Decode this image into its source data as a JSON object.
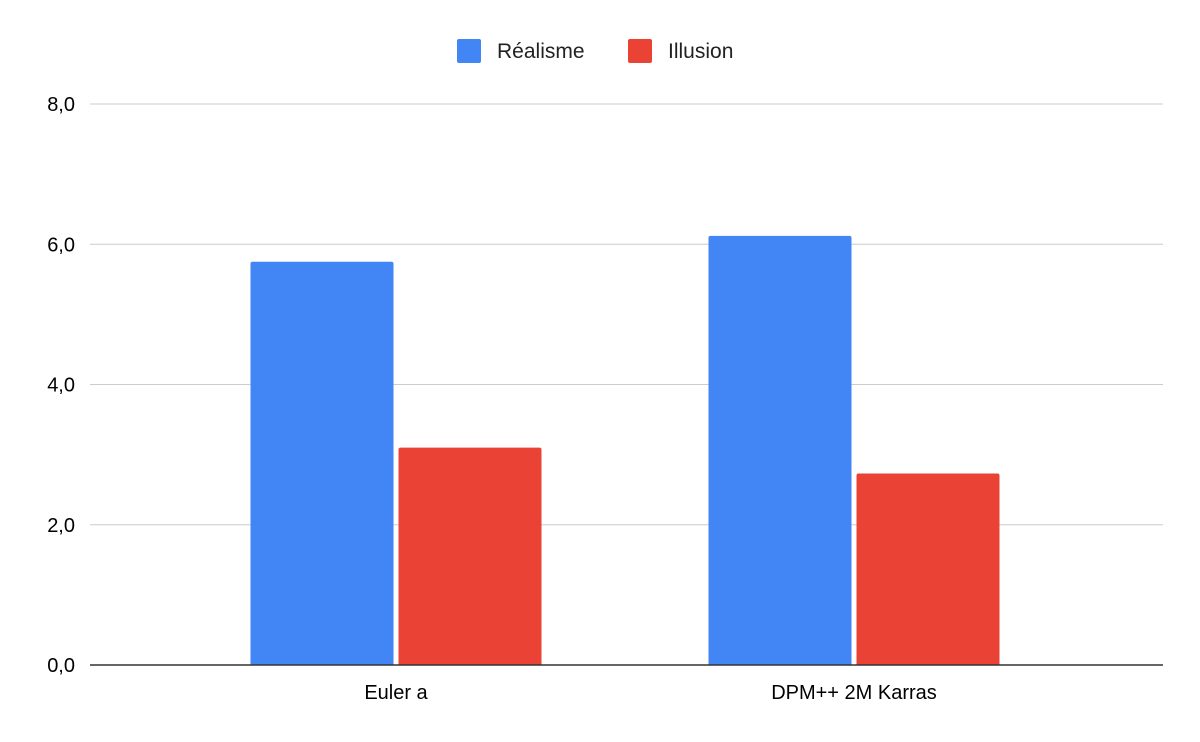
{
  "chart_data": {
    "type": "bar",
    "title": "",
    "xlabel": "",
    "ylabel": "",
    "categories": [
      "Euler a",
      "DPM++ 2M Karras"
    ],
    "series": [
      {
        "name": "Réalisme",
        "color": "#4285f4",
        "values": [
          5.75,
          6.12
        ]
      },
      {
        "name": "Illusion",
        "color": "#ea4335",
        "values": [
          3.1,
          2.73
        ]
      }
    ],
    "ylim": [
      0,
      8
    ],
    "yticks": [
      "0,0",
      "2,0",
      "4,0",
      "6,0",
      "8,0"
    ],
    "grid": true,
    "legend_position": "top-center",
    "colors": {
      "grid": "#cccccc",
      "baseline": "#333333",
      "text": "#000000"
    }
  }
}
